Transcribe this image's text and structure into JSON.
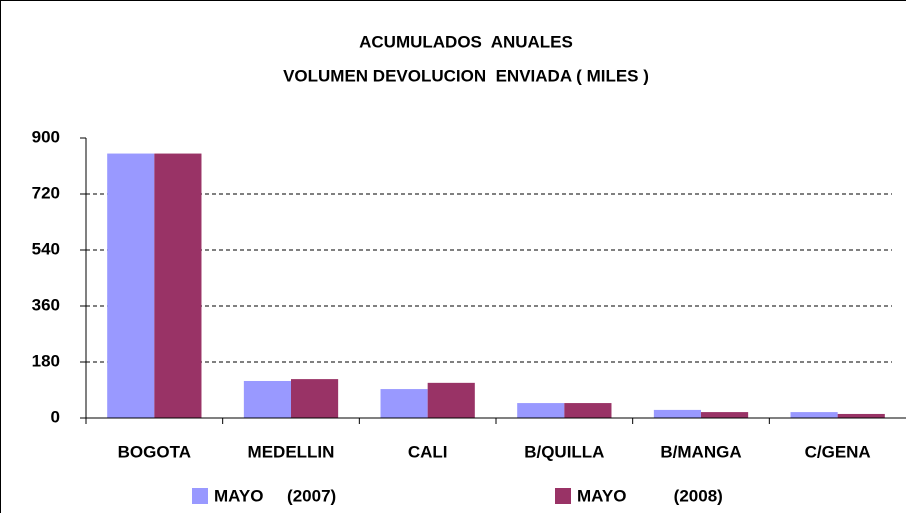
{
  "chart_data": {
    "type": "bar",
    "title": "ACUMULADOS  ANUALES",
    "subtitle": "VOLUMEN DEVOLUCION  ENVIADA ( MILES )",
    "categories": [
      "BOGOTA",
      "MEDELLIN",
      "CALI",
      "B/QUILLA",
      "B/MANGA",
      "C/GENA"
    ],
    "series": [
      {
        "name": "MAYO     (2007)",
        "color": "#9999ff",
        "values": [
          850,
          119,
          93,
          48,
          26,
          19
        ]
      },
      {
        "name": "MAYO          (2008)",
        "color": "#993366",
        "values": [
          850,
          125,
          113,
          48,
          19,
          13
        ]
      }
    ],
    "ylim": [
      0,
      900
    ],
    "yticks": [
      0,
      180,
      360,
      540,
      720,
      900
    ],
    "grid": true
  }
}
